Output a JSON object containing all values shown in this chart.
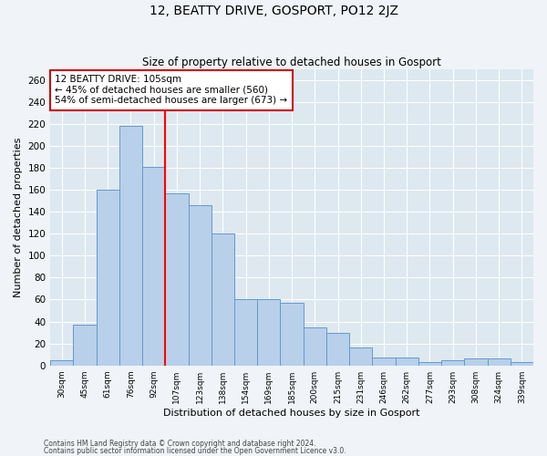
{
  "title": "12, BEATTY DRIVE, GOSPORT, PO12 2JZ",
  "subtitle": "Size of property relative to detached houses in Gosport",
  "xlabel": "Distribution of detached houses by size in Gosport",
  "ylabel": "Number of detached properties",
  "categories": [
    "30sqm",
    "45sqm",
    "61sqm",
    "76sqm",
    "92sqm",
    "107sqm",
    "123sqm",
    "138sqm",
    "154sqm",
    "169sqm",
    "185sqm",
    "200sqm",
    "215sqm",
    "231sqm",
    "246sqm",
    "262sqm",
    "277sqm",
    "293sqm",
    "308sqm",
    "324sqm",
    "339sqm"
  ],
  "values": [
    5,
    37,
    160,
    218,
    181,
    157,
    146,
    120,
    60,
    60,
    57,
    35,
    30,
    16,
    7,
    7,
    3,
    5,
    6,
    6,
    3
  ],
  "bar_color": "#b8d0ea",
  "bar_edge_color": "#6699cc",
  "red_line_index": 5,
  "annotation_text": "12 BEATTY DRIVE: 105sqm\n← 45% of detached houses are smaller (560)\n54% of semi-detached houses are larger (673) →",
  "annotation_box_color": "#ffffff",
  "annotation_box_edge_color": "#cc0000",
  "ylim": [
    0,
    270
  ],
  "yticks": [
    0,
    20,
    40,
    60,
    80,
    100,
    120,
    140,
    160,
    180,
    200,
    220,
    240,
    260
  ],
  "background_color": "#dde8f0",
  "fig_background_color": "#f0f4f8",
  "footer_line1": "Contains HM Land Registry data © Crown copyright and database right 2024.",
  "footer_line2": "Contains public sector information licensed under the Open Government Licence v3.0."
}
